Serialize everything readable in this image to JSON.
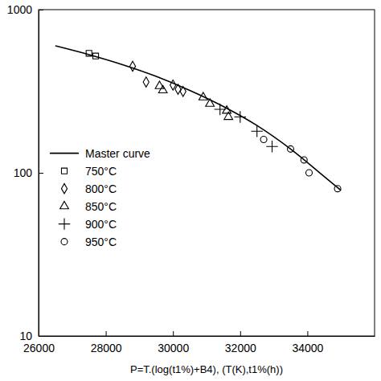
{
  "chart_data": {
    "type": "scatter",
    "x_label": "P=T.(log(t1%)+B4), (T(K),t1%(h))",
    "log": "y",
    "legend": "left",
    "xlim": [
      26000,
      36000
    ],
    "xticks": [
      26000,
      28000,
      30000,
      32000,
      34000
    ],
    "ylim": [
      10,
      1000
    ],
    "yticks": [
      10,
      100,
      1000
    ],
    "series": [
      {
        "name": "Master curve",
        "type": "line",
        "color": "#000000",
        "line_style": "solid",
        "x": [
          26500,
          27500,
          28500,
          29500,
          30500,
          31500,
          32500,
          33500,
          34500,
          35000
        ],
        "values": [
          600,
          530,
          460,
          390,
          320,
          255,
          195,
          140,
          95,
          78
        ]
      },
      {
        "name": "750°C",
        "type": "scatter",
        "color": "#000000",
        "marker": "square",
        "x": [
          27500,
          27700
        ],
        "values": [
          540,
          520
        ]
      },
      {
        "name": "800°C",
        "type": "scatter",
        "color": "#000000",
        "marker": "diamond",
        "x": [
          28800,
          29200,
          30000,
          30150,
          30300
        ],
        "values": [
          450,
          360,
          345,
          325,
          315
        ]
      },
      {
        "name": "850°C",
        "type": "scatter",
        "color": "#000000",
        "marker": "triangle",
        "x": [
          29600,
          29700,
          30900,
          31100,
          31600,
          31650
        ],
        "values": [
          340,
          320,
          290,
          265,
          240,
          220
        ]
      },
      {
        "name": "900°C",
        "type": "scatter",
        "color": "#000000",
        "marker": "plus",
        "x": [
          31400,
          32000,
          32500,
          32950
        ],
        "values": [
          245,
          220,
          180,
          145
        ]
      },
      {
        "name": "950°C",
        "type": "scatter",
        "color": "#000000",
        "marker": "circle",
        "x": [
          32700,
          33500,
          33900,
          34050,
          34900
        ],
        "values": [
          160,
          140,
          120,
          100,
          80
        ]
      }
    ]
  }
}
